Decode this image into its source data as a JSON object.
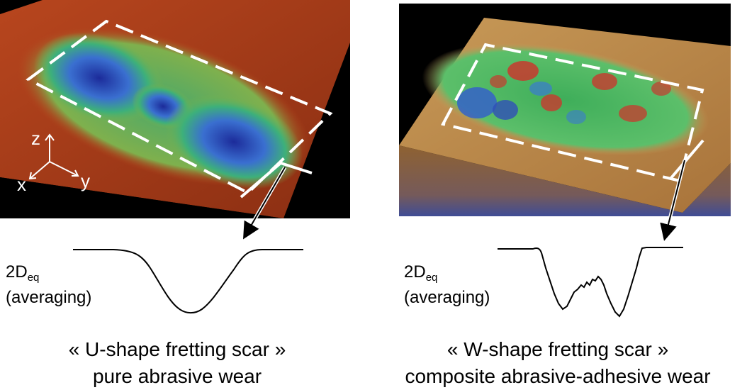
{
  "left": {
    "axes": {
      "z": "z",
      "x": "x",
      "y": "y"
    },
    "eq_label_main": "2D",
    "eq_label_sub": "eq",
    "eq_label_note": "(averaging)",
    "caption_title": "« U-shape fretting scar »",
    "caption_sub": "pure abrasive wear"
  },
  "right": {
    "eq_label_main": "2D",
    "eq_label_sub": "eq",
    "eq_label_note": "(averaging)",
    "caption_title": "« W-shape fretting scar »",
    "caption_sub": "composite abrasive-adhesive wear"
  }
}
